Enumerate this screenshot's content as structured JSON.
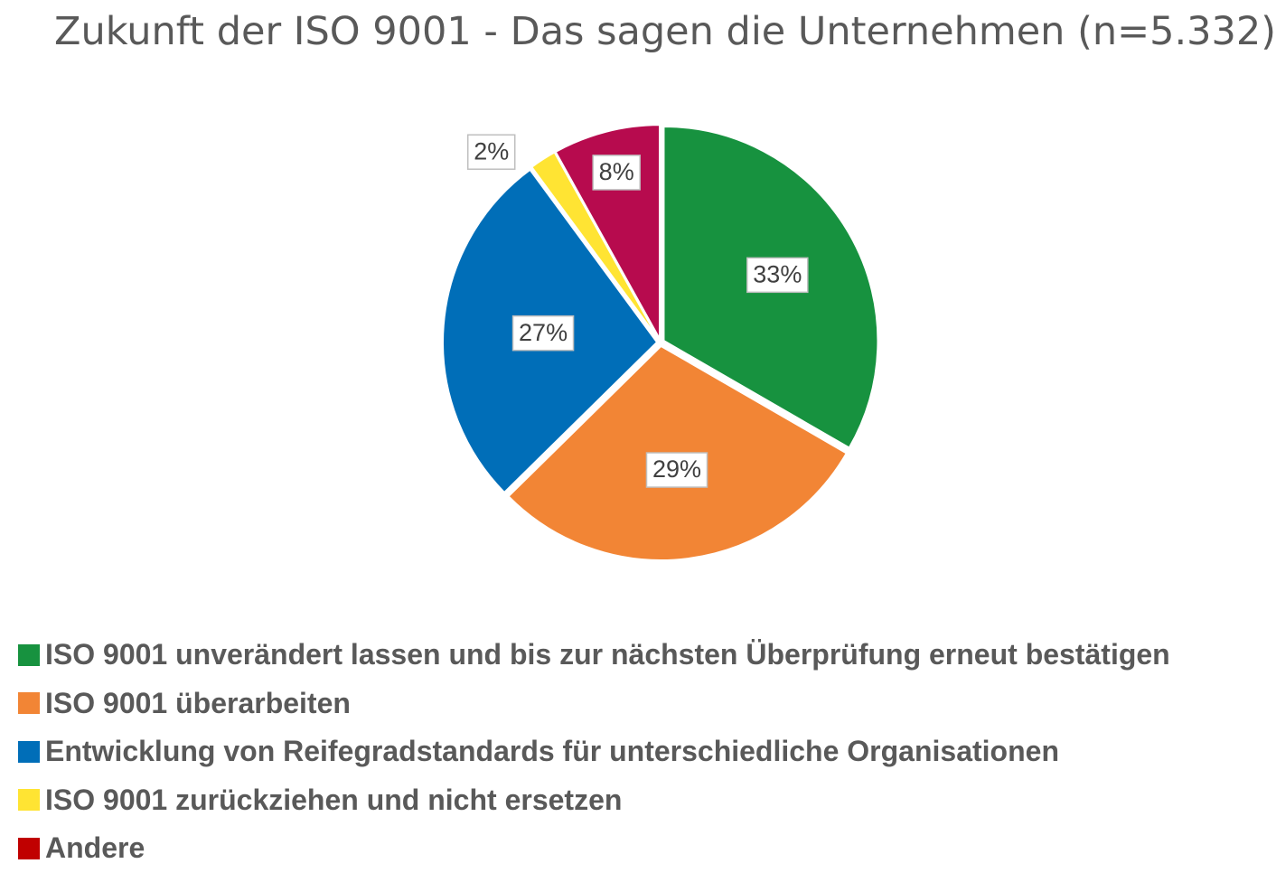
{
  "chart_data": {
    "type": "pie",
    "title": "Zukunft der ISO 9001 - Das sagen die Unternehmen (n=5.332)",
    "slices": [
      {
        "label": "ISO 9001 unverändert lassen und bis zur nächsten Überprüfung erneut bestätigen",
        "value": 33,
        "data_label": "33%",
        "color": "#17923F"
      },
      {
        "label": "ISO 9001 überarbeiten",
        "value": 29,
        "data_label": "29%",
        "color": "#F28535"
      },
      {
        "label": "Entwicklung von Reifegradstandards für unterschiedliche Organisationen",
        "value": 27,
        "data_label": "27%",
        "color": "#006EB8"
      },
      {
        "label": "ISO 9001 zurückziehen und nicht ersetzen",
        "value": 2,
        "data_label": "2%",
        "color": "#FFE433"
      },
      {
        "label": "Andere",
        "value": 8,
        "data_label": "8%",
        "color": "#B70B4E",
        "legend_color": "#C00000"
      }
    ],
    "legend_position": "bottom-left",
    "start_angle": "12 o'clock, clockwise"
  }
}
